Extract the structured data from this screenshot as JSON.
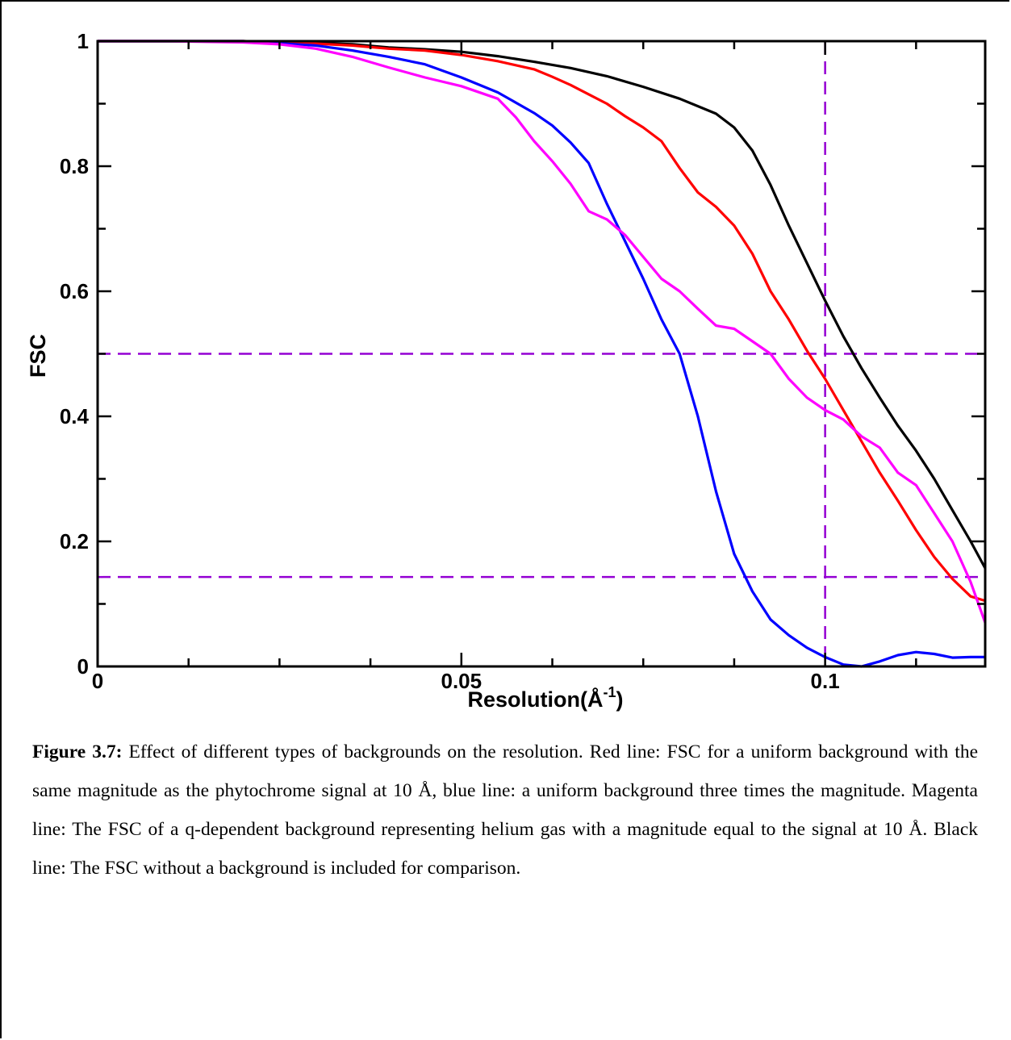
{
  "chart_data": {
    "type": "line",
    "xlabel": "Resolution(Å",
    "xlabel_sup": "-1",
    "xlabel_close": ")",
    "ylabel": "FSC",
    "xlim": [
      0,
      0.122
    ],
    "ylim": [
      0,
      1
    ],
    "x_ticks": [
      {
        "value": 0,
        "label": "0"
      },
      {
        "value": 0.05,
        "label": "0.05"
      },
      {
        "value": 0.1,
        "label": "0.1"
      }
    ],
    "y_ticks": [
      {
        "value": 0,
        "label": "0"
      },
      {
        "value": 0.2,
        "label": "0.2"
      },
      {
        "value": 0.4,
        "label": "0.4"
      },
      {
        "value": 0.6,
        "label": "0.6"
      },
      {
        "value": 0.8,
        "label": "0.8"
      },
      {
        "value": 1,
        "label": "1"
      }
    ],
    "grid": false,
    "reference_lines": {
      "color": "#9400d3",
      "horizontal": [
        0.5,
        0.143
      ],
      "vertical": [
        0.1
      ]
    },
    "series": [
      {
        "color": "#000000",
        "x": [
          0,
          0.01,
          0.02,
          0.03,
          0.035,
          0.04,
          0.045,
          0.05,
          0.055,
          0.06,
          0.065,
          0.07,
          0.075,
          0.08,
          0.085,
          0.0875,
          0.09,
          0.0925,
          0.095,
          0.0975,
          0.1,
          0.1025,
          0.105,
          0.1075,
          0.11,
          0.1125,
          0.115,
          0.1175,
          0.12,
          0.122
        ],
        "y": [
          1,
          1,
          1,
          0.997,
          0.995,
          0.99,
          0.987,
          0.983,
          0.976,
          0.967,
          0.957,
          0.944,
          0.927,
          0.908,
          0.884,
          0.862,
          0.825,
          0.77,
          0.705,
          0.645,
          0.585,
          0.528,
          0.477,
          0.43,
          0.385,
          0.345,
          0.3,
          0.25,
          0.2,
          0.157
        ]
      },
      {
        "color": "#ff0000",
        "x": [
          0,
          0.01,
          0.02,
          0.03,
          0.035,
          0.04,
          0.045,
          0.05,
          0.055,
          0.06,
          0.0625,
          0.065,
          0.0675,
          0.07,
          0.0725,
          0.075,
          0.0775,
          0.08,
          0.0825,
          0.085,
          0.0875,
          0.09,
          0.0925,
          0.095,
          0.0975,
          0.1,
          0.1025,
          0.105,
          0.1075,
          0.11,
          0.1125,
          0.115,
          0.1175,
          0.12,
          0.122
        ],
        "y": [
          1,
          1,
          1,
          0.996,
          0.993,
          0.988,
          0.985,
          0.978,
          0.968,
          0.955,
          0.943,
          0.93,
          0.915,
          0.9,
          0.88,
          0.862,
          0.84,
          0.797,
          0.758,
          0.735,
          0.705,
          0.66,
          0.6,
          0.555,
          0.505,
          0.46,
          0.41,
          0.36,
          0.31,
          0.265,
          0.218,
          0.175,
          0.14,
          0.112,
          0.105
        ]
      },
      {
        "color": "#0000ff",
        "x": [
          0,
          0.01,
          0.02,
          0.03,
          0.035,
          0.04,
          0.045,
          0.05,
          0.055,
          0.06,
          0.0625,
          0.065,
          0.0675,
          0.07,
          0.0725,
          0.075,
          0.0775,
          0.08,
          0.0825,
          0.085,
          0.0875,
          0.09,
          0.0925,
          0.095,
          0.0975,
          0.1,
          0.1025,
          0.105,
          0.1075,
          0.11,
          0.1125,
          0.115,
          0.1175,
          0.12,
          0.122
        ],
        "y": [
          1,
          1,
          1,
          0.993,
          0.985,
          0.975,
          0.963,
          0.942,
          0.918,
          0.885,
          0.865,
          0.838,
          0.805,
          0.74,
          0.68,
          0.62,
          0.555,
          0.5,
          0.4,
          0.28,
          0.18,
          0.12,
          0.075,
          0.05,
          0.03,
          0.015,
          0.003,
          0,
          0.008,
          0.018,
          0.023,
          0.02,
          0.014,
          0.015,
          0.015
        ]
      },
      {
        "color": "#ff00ff",
        "x": [
          0,
          0.01,
          0.02,
          0.025,
          0.03,
          0.035,
          0.04,
          0.045,
          0.05,
          0.055,
          0.0575,
          0.06,
          0.0625,
          0.065,
          0.0675,
          0.07,
          0.0725,
          0.075,
          0.0775,
          0.08,
          0.0825,
          0.085,
          0.0875,
          0.09,
          0.0925,
          0.095,
          0.0975,
          0.1,
          0.1025,
          0.105,
          0.1075,
          0.11,
          0.1125,
          0.115,
          0.1175,
          0.12,
          0.122
        ],
        "y": [
          1,
          1,
          0.998,
          0.995,
          0.988,
          0.975,
          0.958,
          0.942,
          0.928,
          0.908,
          0.878,
          0.84,
          0.808,
          0.772,
          0.728,
          0.715,
          0.69,
          0.655,
          0.62,
          0.6,
          0.572,
          0.545,
          0.54,
          0.52,
          0.5,
          0.46,
          0.43,
          0.41,
          0.395,
          0.368,
          0.35,
          0.31,
          0.29,
          0.245,
          0.2,
          0.135,
          0.07
        ]
      }
    ]
  },
  "caption": {
    "label": "Figure 3.7:",
    "text": " Effect of different types of backgrounds on the resolution. Red line: FSC for a uniform background with the same magnitude as the phytochrome signal at 10 Å, blue line: a uniform background three times the magnitude. Magenta line: The FSC of a q-dependent background representing helium gas with a magnitude equal to the signal at 10 Å. Black line: The FSC without a background is included for comparison."
  }
}
